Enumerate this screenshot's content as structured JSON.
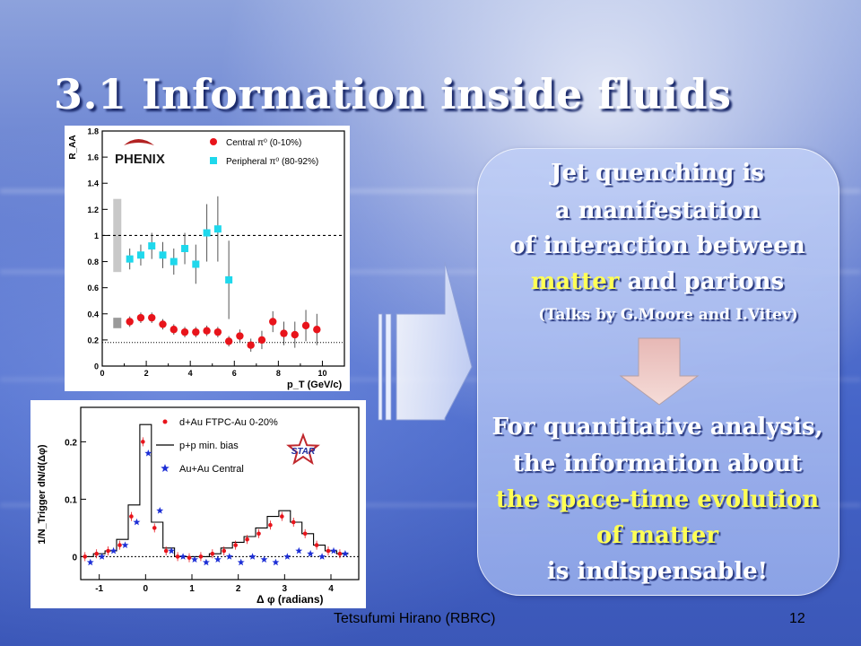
{
  "slide": {
    "title": "3.1 Information inside fluids",
    "footer_author": "Tetsufumi Hirano (RBRC)",
    "footer_page": "12",
    "box": {
      "lines": [
        "Jet quenching is",
        "a manifestation",
        "of interaction between"
      ],
      "matter_word": "matter",
      "partons_rest": " and partons",
      "talks": "(Talks by G.Moore and I.Vitev)",
      "lower_lines": [
        "For quantitative analysis,",
        "the information about"
      ],
      "yellow_lines": [
        "the space-time evolution",
        "of matter"
      ],
      "last_line": "is indispensable!"
    }
  },
  "chart_data": [
    {
      "type": "scatter",
      "logo": "PHENIX",
      "ylabel": "R_AA",
      "xlabel": "p_T (GeV/c)",
      "xlim": [
        0,
        11
      ],
      "ylim": [
        0,
        1.8
      ],
      "xticks": [
        0,
        2,
        4,
        6,
        8,
        10
      ],
      "yticks": [
        0,
        0.2,
        0.4,
        0.6,
        0.8,
        1,
        1.2,
        1.4,
        1.6,
        1.8
      ],
      "legend": [
        "Central π⁰ (0-10%)",
        "Peripheral π⁰ (80-92%)"
      ],
      "reference_lines": [
        1.0,
        0.18
      ],
      "series": [
        {
          "name": "Central π⁰ (0-10%)",
          "color": "#e8141b",
          "marker": "circle",
          "x": [
            1.25,
            1.75,
            2.25,
            2.75,
            3.25,
            3.75,
            4.25,
            4.75,
            5.25,
            5.75,
            6.25,
            6.75,
            7.25,
            7.75,
            8.25,
            8.75,
            9.25,
            9.75
          ],
          "y": [
            0.34,
            0.37,
            0.37,
            0.32,
            0.28,
            0.26,
            0.26,
            0.27,
            0.26,
            0.19,
            0.23,
            0.16,
            0.2,
            0.34,
            0.25,
            0.24,
            0.31,
            0.28
          ],
          "err": [
            0.04,
            0.04,
            0.04,
            0.04,
            0.04,
            0.04,
            0.04,
            0.04,
            0.04,
            0.04,
            0.05,
            0.05,
            0.07,
            0.08,
            0.09,
            0.1,
            0.12,
            0.12
          ]
        },
        {
          "name": "Peripheral π⁰ (80-92%)",
          "color": "#1fd8ec",
          "marker": "square",
          "x": [
            1.25,
            1.75,
            2.25,
            2.75,
            3.25,
            3.75,
            4.25,
            4.75,
            5.25,
            5.75
          ],
          "y": [
            0.82,
            0.85,
            0.92,
            0.85,
            0.8,
            0.9,
            0.78,
            1.02,
            1.05,
            0.66
          ],
          "err": [
            0.08,
            0.08,
            0.1,
            0.1,
            0.1,
            0.12,
            0.15,
            0.22,
            0.25,
            0.3
          ]
        }
      ]
    },
    {
      "type": "scatter",
      "logo": "STAR",
      "ylabel": "1/N_Trigger dN/d(Δφ)",
      "xlabel": "Δ φ (radians)",
      "xlim": [
        -1.4,
        4.6
      ],
      "ylim": [
        -0.04,
        0.26
      ],
      "xticks": [
        -1,
        0,
        1,
        2,
        3,
        4
      ],
      "yticks": [
        0,
        0.1,
        0.2
      ],
      "legend": [
        "d+Au FTPC-Au 0-20%",
        "p+p min. bias",
        "Au+Au Central"
      ],
      "series": [
        {
          "name": "d+Au FTPC-Au 0-20%",
          "color": "#e8141b",
          "marker": "dot",
          "x": [
            -1.25,
            -1.0,
            -0.75,
            -0.5,
            -0.25,
            0.0,
            0.25,
            0.5,
            0.75,
            1.0,
            1.25,
            1.5,
            1.75,
            2.0,
            2.25,
            2.5,
            2.75,
            3.0,
            3.25,
            3.5,
            3.75,
            4.0,
            4.25
          ],
          "y": [
            0.0,
            0.005,
            0.01,
            0.02,
            0.07,
            0.2,
            0.05,
            0.01,
            0.0,
            -0.002,
            0.0,
            0.005,
            0.01,
            0.02,
            0.03,
            0.04,
            0.055,
            0.07,
            0.06,
            0.04,
            0.02,
            0.01,
            0.005
          ]
        },
        {
          "name": "p+p min. bias",
          "color": "#000000",
          "marker": "step",
          "x": [
            -1.25,
            -1.0,
            -0.75,
            -0.5,
            -0.25,
            0.0,
            0.25,
            0.5,
            0.75,
            1.0,
            1.25,
            1.5,
            1.75,
            2.0,
            2.25,
            2.5,
            2.75,
            3.0,
            3.25,
            3.5,
            3.75,
            4.0,
            4.25
          ],
          "y": [
            0.0,
            0.005,
            0.01,
            0.03,
            0.09,
            0.23,
            0.06,
            0.015,
            0.0,
            0.0,
            0.0,
            0.005,
            0.015,
            0.025,
            0.035,
            0.05,
            0.07,
            0.08,
            0.06,
            0.04,
            0.02,
            0.01,
            0.005
          ]
        },
        {
          "name": "Au+Au Central",
          "color": "#1d2fd6",
          "marker": "star",
          "x": [
            -1.25,
            -1.0,
            -0.75,
            -0.5,
            -0.25,
            0.0,
            0.25,
            0.5,
            0.75,
            1.0,
            1.25,
            1.5,
            1.75,
            2.0,
            2.25,
            2.5,
            2.75,
            3.0,
            3.25,
            3.5,
            3.75,
            4.0,
            4.25
          ],
          "y": [
            -0.01,
            0.0,
            0.01,
            0.02,
            0.06,
            0.18,
            0.08,
            0.01,
            0.0,
            -0.005,
            -0.01,
            -0.005,
            0.0,
            -0.01,
            0.0,
            -0.005,
            -0.01,
            0.0,
            0.01,
            0.005,
            0.0,
            0.01,
            0.005
          ]
        }
      ]
    }
  ]
}
